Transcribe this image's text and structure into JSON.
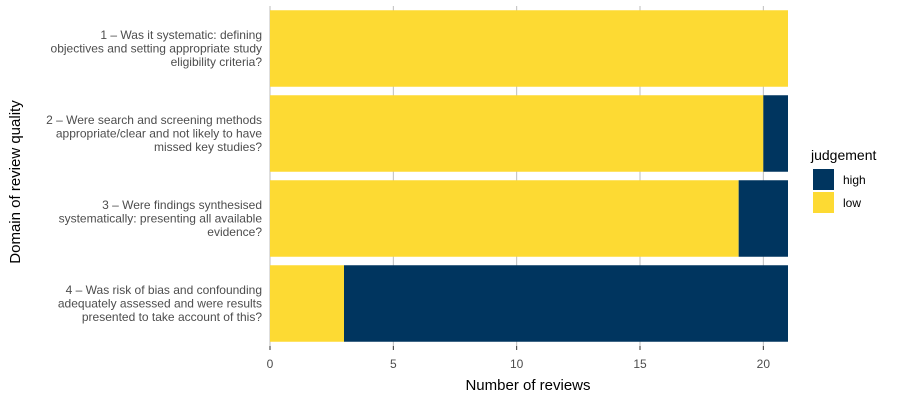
{
  "chart_data": {
    "type": "bar",
    "orientation": "horizontal",
    "stacked": true,
    "xlabel": "Number of reviews",
    "ylabel": "Domain of review quality",
    "xlim": [
      0,
      21
    ],
    "x_ticks": [
      "0",
      "5",
      "10",
      "15",
      "20"
    ],
    "grid": true,
    "legend_position": "right",
    "categories": [
      [
        "1 – Was it systematic: defining",
        "objectives and setting appropriate study",
        "eligibility criteria?"
      ],
      [
        "2 – Were search and screening methods",
        "appropriate/clear and not likely to have",
        "missed key studies?"
      ],
      [
        "3 – Were findings synthesised",
        "systematically: presenting all available",
        "evidence?"
      ],
      [
        "4 – Was risk of bias and confounding",
        "adequately assessed and were results",
        "presented to take account of this?"
      ]
    ],
    "series": [
      {
        "name": "low",
        "color": "#FDDA33",
        "values": [
          21,
          20,
          19,
          3
        ]
      },
      {
        "name": "high",
        "color": "#00355F",
        "values": [
          0,
          1,
          2,
          18
        ]
      }
    ],
    "legend": {
      "title": "judgement",
      "entries": [
        {
          "label": "high",
          "color": "#00355F"
        },
        {
          "label": "low",
          "color": "#FDDA33"
        }
      ]
    }
  }
}
